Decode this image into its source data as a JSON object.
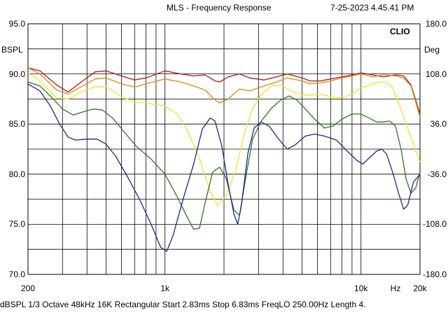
{
  "header": {
    "title": "MLS - Frequency Response",
    "timestamp": "7-25-2023 4.45.41 PM"
  },
  "footer": {
    "status": "dBSPL   1/3 Octave   48kHz   16K   Rectangular   Start 2.83ms     Stop 6.83ms     FreqLO 250.00Hz   Length 4."
  },
  "chart_data": {
    "type": "line",
    "brand_label": "CLIO",
    "ylabel": "BSPL",
    "y2label": "Deg",
    "x_scale": "log",
    "xlim": [
      200,
      20000
    ],
    "ylim": [
      70,
      95
    ],
    "y2lim": [
      -180,
      180
    ],
    "grid": true,
    "x_tick_labels": [
      {
        "value": 200,
        "label": "200"
      },
      {
        "value": 1000,
        "label": "1k"
      },
      {
        "value": 10000,
        "label": "10k"
      },
      {
        "value": 15000,
        "label": "Hz"
      },
      {
        "value": 20000,
        "label": "20k"
      }
    ],
    "y_ticks": [
      "95.0",
      "90.0",
      "85.0",
      "80.0",
      "75.0",
      "70.0"
    ],
    "y2_ticks": [
      "180.0",
      "108.0",
      "36.0",
      "-36.0",
      "-108.0",
      "-180.0"
    ],
    "series": [
      {
        "color": "#b01818",
        "points": [
          [
            200,
            90.6
          ],
          [
            230,
            90.3
          ],
          [
            280,
            88.9
          ],
          [
            320,
            88.2
          ],
          [
            380,
            89.3
          ],
          [
            440,
            90.2
          ],
          [
            500,
            90.3
          ],
          [
            600,
            89.8
          ],
          [
            700,
            89.4
          ],
          [
            800,
            89.6
          ],
          [
            1000,
            90.3
          ],
          [
            1200,
            90.0
          ],
          [
            1400,
            89.8
          ],
          [
            1600,
            89.9
          ],
          [
            1800,
            89.3
          ],
          [
            1900,
            89.2
          ],
          [
            2100,
            89.7
          ],
          [
            2400,
            90.0
          ],
          [
            2700,
            89.6
          ],
          [
            3200,
            89.4
          ],
          [
            3700,
            89.7
          ],
          [
            4200,
            90.0
          ],
          [
            5000,
            89.6
          ],
          [
            5500,
            89.3
          ],
          [
            6200,
            89.3
          ],
          [
            7000,
            89.5
          ],
          [
            8000,
            89.7
          ],
          [
            9000,
            89.9
          ],
          [
            10000,
            90.1
          ],
          [
            11500,
            89.9
          ],
          [
            13000,
            89.7
          ],
          [
            15000,
            89.9
          ],
          [
            16500,
            89.8
          ],
          [
            18000,
            88.9
          ],
          [
            20000,
            86.0
          ]
        ]
      },
      {
        "color": "#e08a10",
        "points": [
          [
            200,
            90.6
          ],
          [
            230,
            90.0
          ],
          [
            280,
            88.4
          ],
          [
            320,
            88.0
          ],
          [
            380,
            88.8
          ],
          [
            440,
            89.5
          ],
          [
            500,
            89.6
          ],
          [
            600,
            89.0
          ],
          [
            700,
            88.7
          ],
          [
            800,
            89.0
          ],
          [
            1000,
            89.5
          ],
          [
            1200,
            89.2
          ],
          [
            1400,
            88.8
          ],
          [
            1600,
            88.4
          ],
          [
            1800,
            87.4
          ],
          [
            1900,
            87.1
          ],
          [
            2100,
            87.5
          ],
          [
            2400,
            88.5
          ],
          [
            2700,
            88.3
          ],
          [
            3200,
            88.8
          ],
          [
            3700,
            89.2
          ],
          [
            4200,
            89.6
          ],
          [
            5000,
            89.3
          ],
          [
            5500,
            89.0
          ],
          [
            6200,
            89.1
          ],
          [
            7000,
            89.3
          ],
          [
            8000,
            89.6
          ],
          [
            9000,
            89.8
          ],
          [
            10000,
            90.0
          ],
          [
            11500,
            89.7
          ],
          [
            13000,
            89.9
          ],
          [
            15000,
            89.8
          ],
          [
            16500,
            89.6
          ],
          [
            18000,
            88.8
          ],
          [
            20000,
            85.7
          ]
        ]
      },
      {
        "color": "#f2e42a",
        "points": [
          [
            200,
            90.1
          ],
          [
            230,
            89.3
          ],
          [
            280,
            87.6
          ],
          [
            320,
            87.5
          ],
          [
            380,
            88.3
          ],
          [
            440,
            88.7
          ],
          [
            500,
            88.7
          ],
          [
            600,
            87.7
          ],
          [
            700,
            87.2
          ],
          [
            800,
            87.1
          ],
          [
            1000,
            86.8
          ],
          [
            1150,
            86.0
          ],
          [
            1300,
            84.4
          ],
          [
            1500,
            81.5
          ],
          [
            1700,
            78.3
          ],
          [
            1850,
            76.9
          ],
          [
            2050,
            77.8
          ],
          [
            2300,
            80.5
          ],
          [
            2550,
            84.2
          ],
          [
            2800,
            86.5
          ],
          [
            3100,
            88.0
          ],
          [
            3500,
            88.8
          ],
          [
            3900,
            88.9
          ],
          [
            4400,
            88.3
          ],
          [
            5000,
            87.9
          ],
          [
            5500,
            87.9
          ],
          [
            6200,
            88.0
          ],
          [
            7000,
            87.7
          ],
          [
            8000,
            87.6
          ],
          [
            9000,
            88.0
          ],
          [
            10000,
            88.6
          ],
          [
            11500,
            89.0
          ],
          [
            12500,
            89.2
          ],
          [
            13500,
            89.2
          ],
          [
            14500,
            88.6
          ],
          [
            16000,
            86.5
          ],
          [
            18000,
            83.6
          ],
          [
            20000,
            81.2
          ]
        ]
      },
      {
        "color": "#2a7a1a",
        "points": [
          [
            200,
            89.2
          ],
          [
            230,
            88.8
          ],
          [
            260,
            87.8
          ],
          [
            300,
            86.5
          ],
          [
            340,
            85.9
          ],
          [
            380,
            86.2
          ],
          [
            430,
            86.5
          ],
          [
            480,
            86.4
          ],
          [
            540,
            85.6
          ],
          [
            620,
            84.2
          ],
          [
            720,
            82.7
          ],
          [
            850,
            81.5
          ],
          [
            1000,
            80.0
          ],
          [
            1150,
            77.8
          ],
          [
            1300,
            75.7
          ],
          [
            1400,
            74.5
          ],
          [
            1500,
            74.6
          ],
          [
            1600,
            77.1
          ],
          [
            1750,
            80.2
          ],
          [
            1900,
            80.7
          ],
          [
            2050,
            79.6
          ],
          [
            2250,
            76.4
          ],
          [
            2400,
            75.9
          ],
          [
            2600,
            80.0
          ],
          [
            2800,
            83.5
          ],
          [
            3100,
            85.3
          ],
          [
            3500,
            86.6
          ],
          [
            3900,
            87.4
          ],
          [
            4300,
            87.8
          ],
          [
            4700,
            87.4
          ],
          [
            5200,
            86.5
          ],
          [
            5800,
            85.5
          ],
          [
            6500,
            84.6
          ],
          [
            7200,
            84.8
          ],
          [
            8000,
            85.5
          ],
          [
            9000,
            86.0
          ],
          [
            10000,
            86.0
          ],
          [
            11000,
            85.6
          ],
          [
            12000,
            85.2
          ],
          [
            13000,
            85.2
          ],
          [
            14000,
            85.3
          ],
          [
            15000,
            84.8
          ],
          [
            16000,
            82.5
          ],
          [
            17000,
            79.5
          ],
          [
            18000,
            78.1
          ],
          [
            19000,
            78.6
          ],
          [
            20000,
            80.2
          ]
        ]
      },
      {
        "color": "#1c2790",
        "points": [
          [
            200,
            89.0
          ],
          [
            230,
            88.3
          ],
          [
            260,
            86.8
          ],
          [
            290,
            85.0
          ],
          [
            320,
            83.7
          ],
          [
            350,
            83.4
          ],
          [
            400,
            83.5
          ],
          [
            450,
            83.5
          ],
          [
            500,
            83.0
          ],
          [
            560,
            81.8
          ],
          [
            650,
            79.6
          ],
          [
            750,
            77.3
          ],
          [
            850,
            75.0
          ],
          [
            950,
            72.7
          ],
          [
            1020,
            72.3
          ],
          [
            1100,
            73.9
          ],
          [
            1250,
            77.8
          ],
          [
            1400,
            81.0
          ],
          [
            1550,
            84.5
          ],
          [
            1700,
            85.6
          ],
          [
            1800,
            85.3
          ],
          [
            1950,
            82.8
          ],
          [
            2100,
            79.0
          ],
          [
            2250,
            76.0
          ],
          [
            2350,
            75.0
          ],
          [
            2450,
            76.8
          ],
          [
            2650,
            82.1
          ],
          [
            2850,
            84.6
          ],
          [
            3100,
            85.2
          ],
          [
            3400,
            84.8
          ],
          [
            3800,
            83.5
          ],
          [
            4200,
            82.5
          ],
          [
            4600,
            82.9
          ],
          [
            5200,
            83.8
          ],
          [
            5800,
            84.0
          ],
          [
            6500,
            83.8
          ],
          [
            7500,
            83.4
          ],
          [
            8500,
            82.3
          ],
          [
            9500,
            81.4
          ],
          [
            10200,
            81.0
          ],
          [
            11000,
            81.6
          ],
          [
            12000,
            82.3
          ],
          [
            12800,
            82.5
          ],
          [
            13500,
            82.0
          ],
          [
            14500,
            80.2
          ],
          [
            15500,
            78.2
          ],
          [
            16500,
            76.5
          ],
          [
            17300,
            76.9
          ],
          [
            18500,
            79.2
          ],
          [
            20000,
            80.0
          ]
        ]
      }
    ]
  }
}
